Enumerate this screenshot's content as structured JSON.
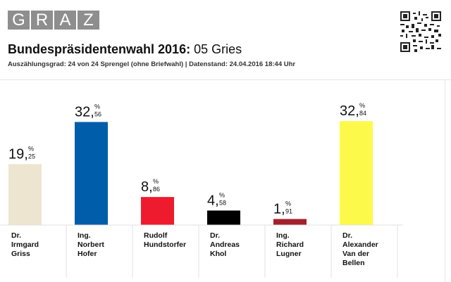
{
  "header": {
    "logo_letters": [
      "G",
      "R",
      "A",
      "Z"
    ],
    "title_bold": "Bundespräsidentenwahl 2016:",
    "title_rest": "05 Gries",
    "subtitle": "Auszählungsgrad: 24 von 24 Sprengel (ohne Briefwahl) | Datenstand: 24.04.2016 18:44 Uhr"
  },
  "chart_data": {
    "type": "bar",
    "title": "Bundespräsidentenwahl 2016: 05 Gries",
    "unit": "%",
    "ylim": [
      0,
      40
    ],
    "grid": false,
    "categories": [
      [
        "Dr.",
        "Irmgard",
        "Griss"
      ],
      [
        "Ing.",
        "Norbert",
        "Hofer"
      ],
      [
        "Rudolf",
        "Hundstorfer"
      ],
      [
        "Dr.",
        "Andreas",
        "Khol"
      ],
      [
        "Ing.",
        "Richard",
        "Lugner"
      ],
      [
        "Dr.",
        "Alexander",
        "Van der",
        "Bellen"
      ]
    ],
    "values": [
      19.25,
      32.56,
      8.86,
      4.58,
      1.91,
      32.84
    ],
    "label_int": [
      "19",
      "32",
      "8",
      "4",
      "1",
      "32"
    ],
    "label_dec": [
      "25",
      "56",
      "86",
      "58",
      "91",
      "84"
    ],
    "colors": [
      "#eee5d0",
      "#005da9",
      "#ee1b2e",
      "#000000",
      "#a3212d",
      "#fdf94a"
    ]
  }
}
